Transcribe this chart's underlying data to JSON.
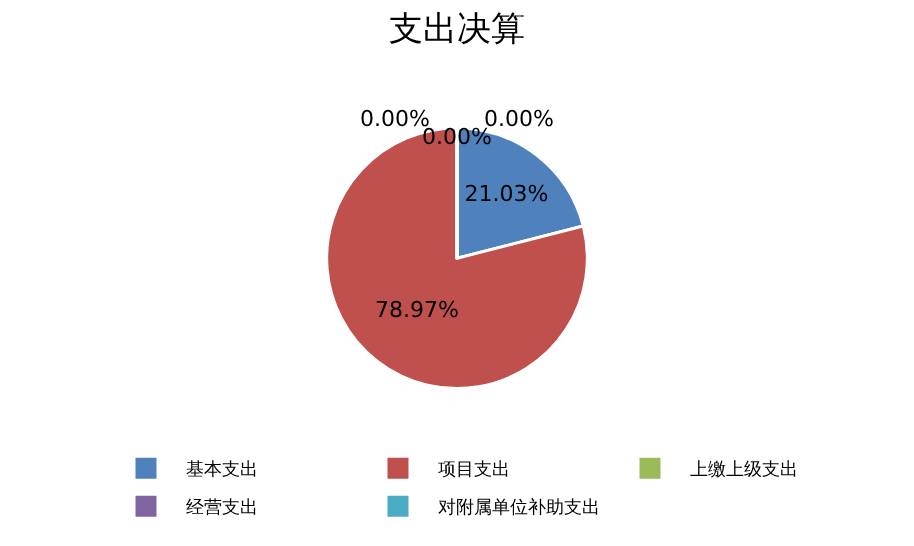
{
  "chart_data": {
    "type": "pie",
    "title": "支出决算",
    "categories": [
      "基本支出",
      "项目支出",
      "上缴上级支出",
      "经营支出",
      "对附属单位补助支出"
    ],
    "values": [
      21.03,
      78.97,
      0,
      0,
      0
    ],
    "colors": [
      "#4f81bd",
      "#c0504d",
      "#9bbb59",
      "#8064a2",
      "#4bacc6"
    ],
    "value_labels": [
      "21.03%",
      "78.97%",
      "0.00%",
      "0.00%",
      "0.00%"
    ],
    "legend": "bottom"
  }
}
